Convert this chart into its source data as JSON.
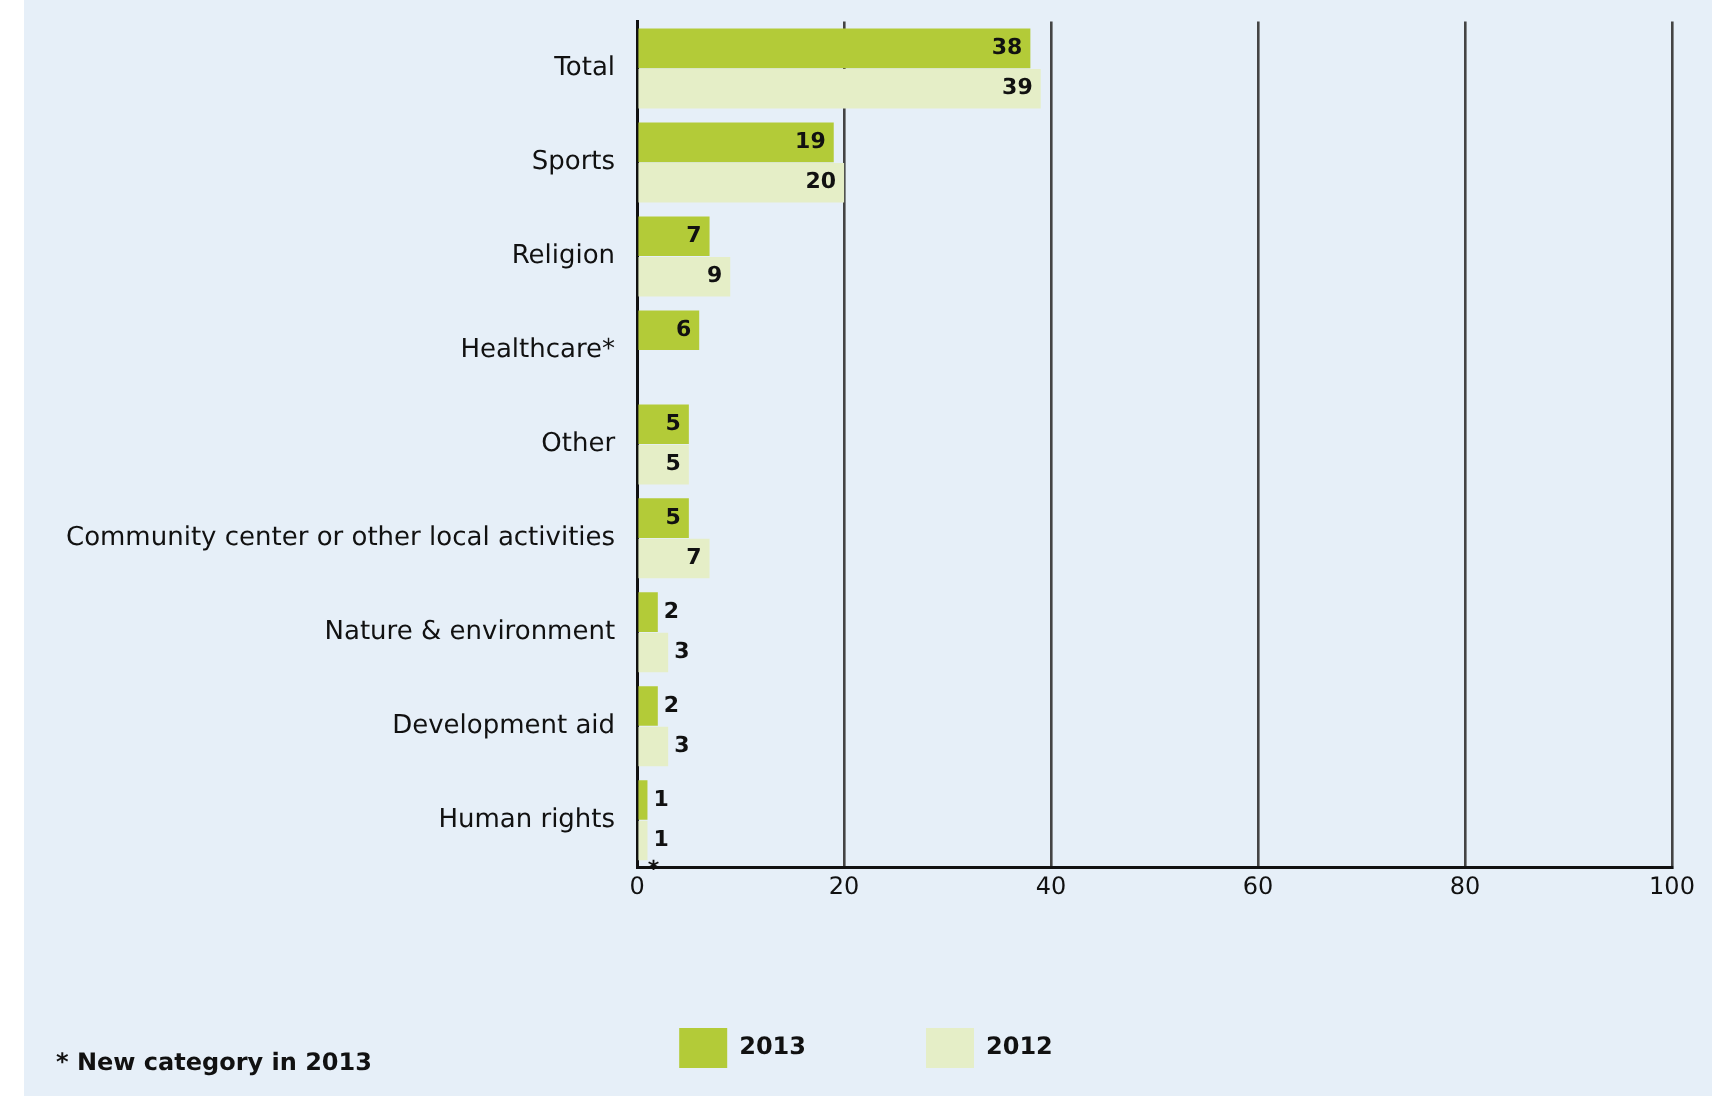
{
  "chart_data": {
    "type": "bar",
    "orientation": "horizontal",
    "categories": [
      "Total",
      "Sports",
      "Religion",
      "Healthcare*",
      "Other",
      "Community center or other local activities",
      "Nature & environment",
      "Development aid",
      "Human rights"
    ],
    "series": [
      {
        "name": "2013",
        "color": "#b3cb38",
        "values": [
          38,
          19,
          7,
          6,
          5,
          5,
          2,
          2,
          1
        ]
      },
      {
        "name": "2012",
        "color": "#e5eec7",
        "values": [
          39,
          20,
          9,
          null,
          5,
          7,
          3,
          3,
          1
        ]
      }
    ],
    "xlim": [
      0,
      100
    ],
    "xticks": [
      0,
      20,
      40,
      60,
      80,
      100
    ],
    "grid": "x",
    "legend": "bottom",
    "data_labels": true,
    "annotations": [
      "* New category in 2013",
      {
        "text": "*",
        "x": 1,
        "y": "Human rights"
      }
    ]
  }
}
